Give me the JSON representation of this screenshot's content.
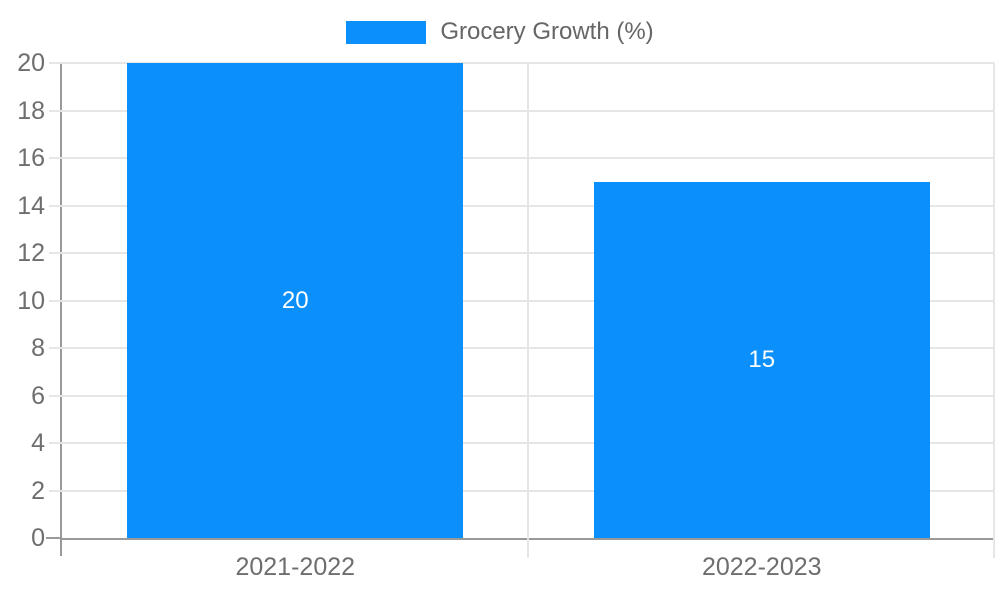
{
  "legend": {
    "label": "Grocery Growth (%)"
  },
  "colors": {
    "bar": "#0A8FFB",
    "grid": "#e6e6e6",
    "axis": "#999999",
    "tick_text": "#6e6e6e",
    "legend_text": "#666666",
    "value_text": "#ffffff",
    "background": "#ffffff"
  },
  "chart_data": {
    "type": "bar",
    "categories": [
      "2021-2022",
      "2022-2023"
    ],
    "series": [
      {
        "name": "Grocery Growth (%)",
        "values": [
          20,
          15
        ]
      }
    ],
    "title": "",
    "xlabel": "",
    "ylabel": "",
    "ylim": [
      0,
      20
    ],
    "ytick_step": 2,
    "yticks": [
      0,
      2,
      4,
      6,
      8,
      10,
      12,
      14,
      16,
      18,
      20
    ],
    "grid": true,
    "legend_position": "top",
    "bar_width_fraction": 0.72,
    "value_labels_shown": true
  }
}
